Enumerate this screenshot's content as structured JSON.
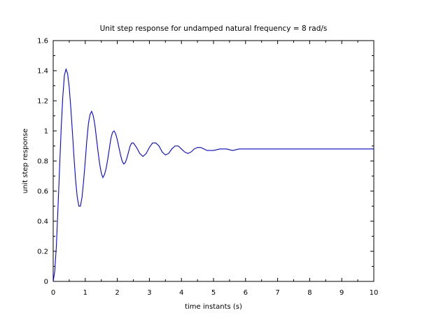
{
  "chart_data": {
    "type": "line",
    "title": "Unit step response for undamped natural frequency = 8 rad/s",
    "xlabel": "time instants (s)",
    "ylabel": "unit step response",
    "xlim": [
      0,
      10
    ],
    "ylim": [
      0,
      1.6
    ],
    "x_ticks": [
      "0",
      "1",
      "2",
      "3",
      "4",
      "5",
      "6",
      "7",
      "8",
      "9",
      "10"
    ],
    "y_ticks": [
      "0",
      "0.2",
      "0.4",
      "0.6",
      "0.8",
      "1",
      "1.2",
      "1.4",
      "1.6"
    ],
    "grid": false,
    "legend": "none",
    "series": [
      {
        "color": "#0000ff",
        "x": [
          0,
          0.05,
          0.1,
          0.15,
          0.2,
          0.25,
          0.3,
          0.35,
          0.4,
          0.45,
          0.5,
          0.55,
          0.6,
          0.65,
          0.7,
          0.75,
          0.8,
          0.85,
          0.9,
          0.95,
          1.0,
          1.05,
          1.1,
          1.15,
          1.2,
          1.25,
          1.3,
          1.35,
          1.4,
          1.45,
          1.5,
          1.55,
          1.6,
          1.65,
          1.7,
          1.75,
          1.8,
          1.85,
          1.9,
          1.95,
          2.0,
          2.05,
          2.1,
          2.15,
          2.2,
          2.25,
          2.3,
          2.35,
          2.4,
          2.45,
          2.5,
          2.6,
          2.7,
          2.8,
          2.9,
          3.0,
          3.1,
          3.2,
          3.3,
          3.4,
          3.5,
          3.6,
          3.7,
          3.8,
          3.9,
          4.0,
          4.1,
          4.2,
          4.3,
          4.4,
          4.5,
          4.6,
          4.7,
          4.8,
          4.9,
          5.0,
          5.2,
          5.4,
          5.6,
          5.8,
          6.0,
          6.2,
          6.4,
          6.6,
          6.8,
          7.0,
          7.5,
          8.0,
          8.5,
          9.0,
          9.5,
          10.0
        ],
        "values": [
          0,
          0.07,
          0.24,
          0.49,
          0.76,
          1.02,
          1.23,
          1.37,
          1.41,
          1.38,
          1.29,
          1.15,
          0.99,
          0.82,
          0.67,
          0.56,
          0.5,
          0.5,
          0.56,
          0.67,
          0.8,
          0.94,
          1.05,
          1.11,
          1.13,
          1.1,
          1.04,
          0.95,
          0.86,
          0.78,
          0.72,
          0.69,
          0.71,
          0.75,
          0.81,
          0.88,
          0.95,
          0.99,
          1.0,
          0.98,
          0.94,
          0.89,
          0.84,
          0.8,
          0.78,
          0.79,
          0.82,
          0.86,
          0.9,
          0.92,
          0.92,
          0.89,
          0.85,
          0.83,
          0.85,
          0.89,
          0.92,
          0.92,
          0.9,
          0.86,
          0.84,
          0.85,
          0.88,
          0.9,
          0.9,
          0.88,
          0.86,
          0.85,
          0.86,
          0.88,
          0.89,
          0.89,
          0.88,
          0.87,
          0.87,
          0.87,
          0.88,
          0.88,
          0.87,
          0.88,
          0.88,
          0.88,
          0.88,
          0.88,
          0.88,
          0.88,
          0.88,
          0.88,
          0.88,
          0.88,
          0.88,
          0.88
        ]
      }
    ]
  }
}
